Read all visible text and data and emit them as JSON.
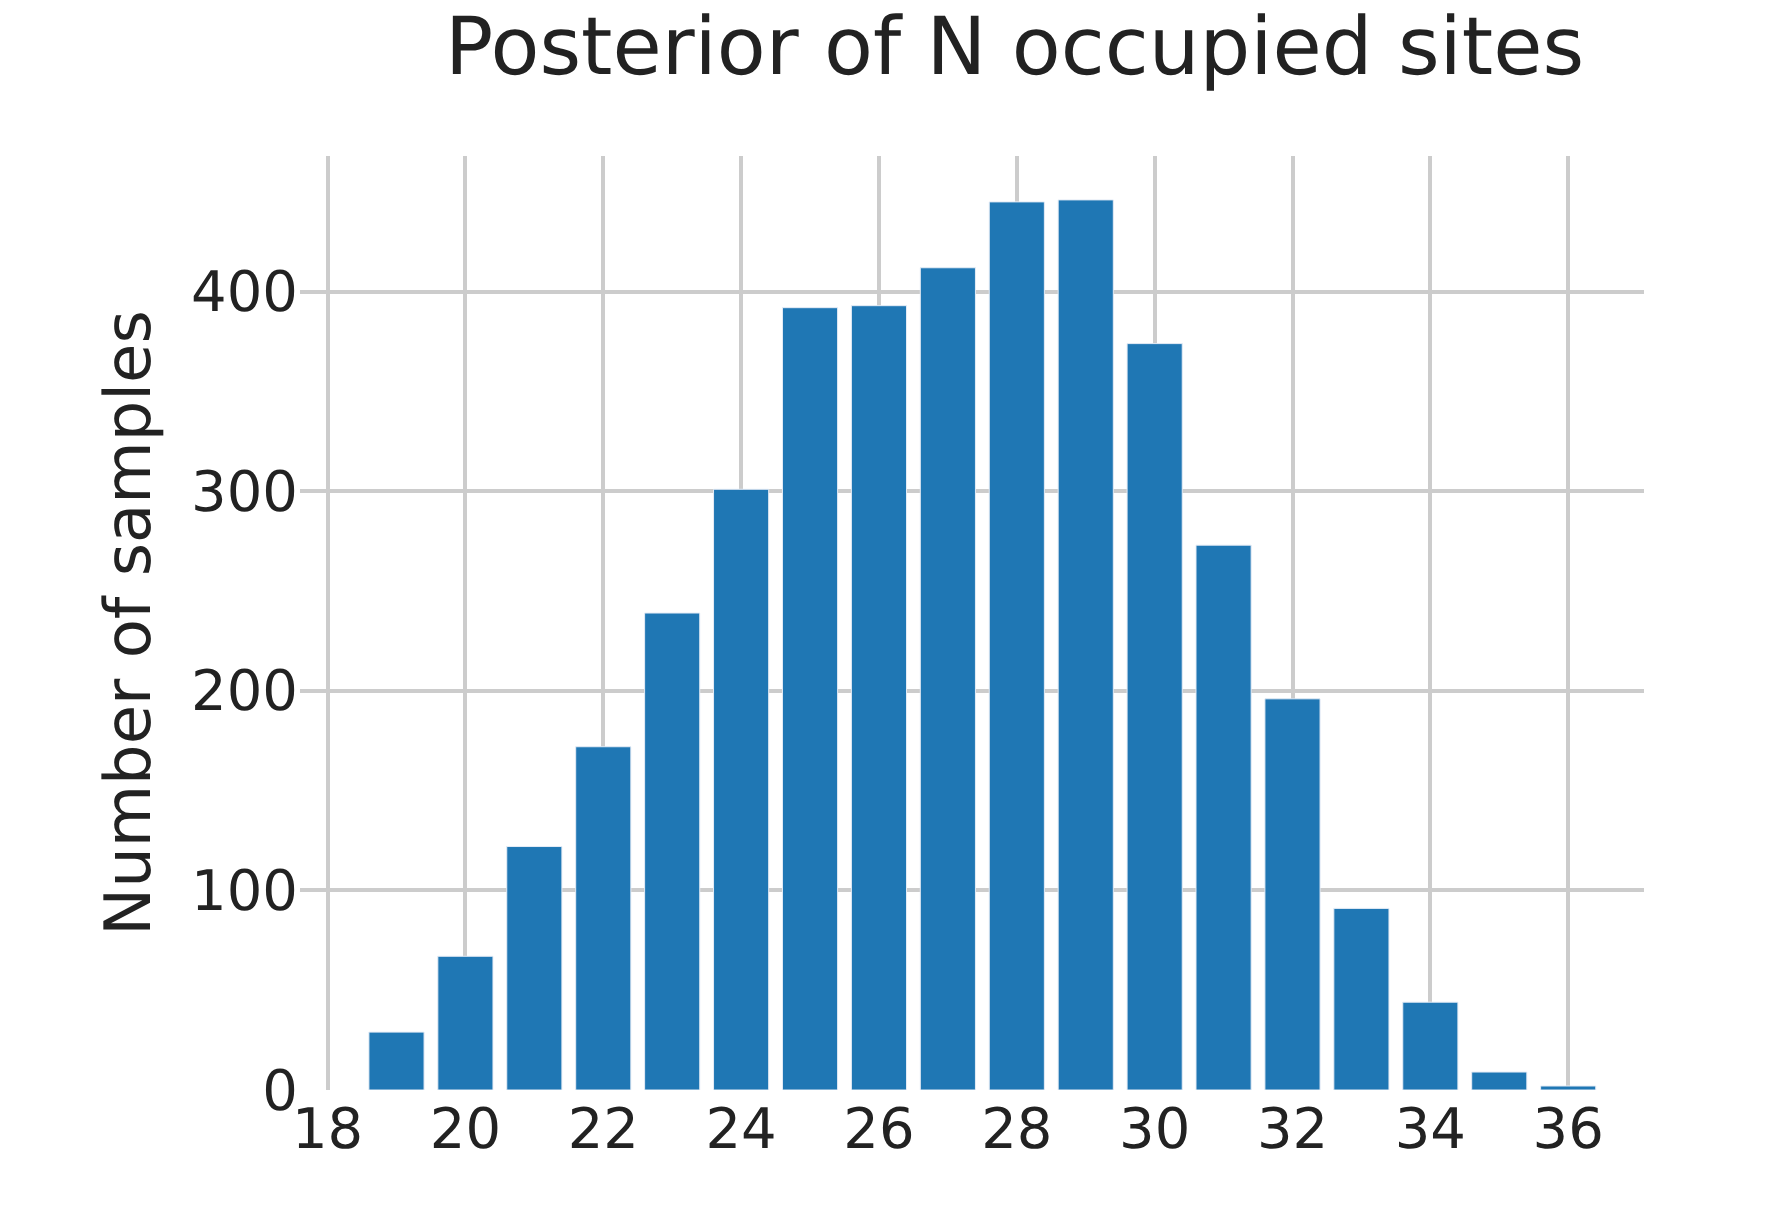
{
  "chart_data": {
    "type": "bar",
    "title": "Posterior of N occupied sites",
    "ylabel": "Number of samples",
    "x": [
      19,
      20,
      21,
      22,
      23,
      24,
      25,
      26,
      27,
      28,
      29,
      30,
      31,
      32,
      33,
      34,
      35,
      36
    ],
    "values": [
      29,
      67,
      122,
      172,
      239,
      301,
      392,
      393,
      412,
      445,
      446,
      374,
      273,
      196,
      91,
      44,
      9,
      2
    ],
    "color": "#1f77b4",
    "xlim": [
      17.6,
      37.1
    ],
    "xticks": [
      18,
      20,
      22,
      24,
      26,
      28,
      30,
      32,
      34,
      36
    ],
    "ylim": [
      0,
      468
    ],
    "yticks": [
      0,
      100,
      200,
      300,
      400
    ],
    "grid": true,
    "legend": false
  }
}
